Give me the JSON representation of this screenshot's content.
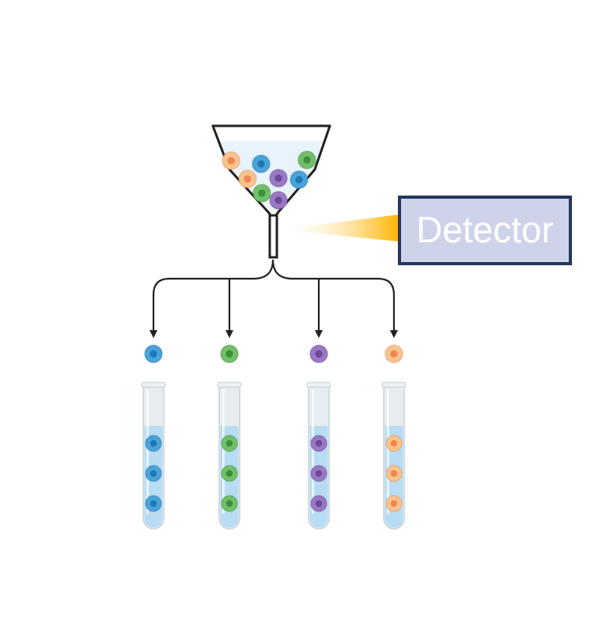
{
  "detector": {
    "label": "Detector",
    "fill": "#cfd3ea",
    "border": "#26365e",
    "beam_color": "#ffb300"
  },
  "colors": {
    "blue": {
      "body": "#4aa3d9",
      "nucleus": "#1f78b4"
    },
    "green": {
      "body": "#72bf6a",
      "nucleus": "#3d8f3a"
    },
    "purple": {
      "body": "#9b78c4",
      "nucleus": "#6c4a99"
    },
    "orange": {
      "body": "#f7c48e",
      "nucleus": "#f0874f"
    },
    "liquid": "#b8dcf3",
    "glass": "#e6ecef",
    "outline": "#222222"
  },
  "funnel_cells": [
    "orange",
    "blue",
    "green",
    "orange",
    "purple",
    "blue",
    "green",
    "purple"
  ],
  "outputs": [
    {
      "cell_type": "blue",
      "tube_count": 3
    },
    {
      "cell_type": "green",
      "tube_count": 3
    },
    {
      "cell_type": "purple",
      "tube_count": 3
    },
    {
      "cell_type": "orange",
      "tube_count": 3
    }
  ],
  "icons": [
    "funnel-icon",
    "cell-icon",
    "test-tube-icon",
    "arrow-down-icon",
    "light-beam-icon"
  ]
}
